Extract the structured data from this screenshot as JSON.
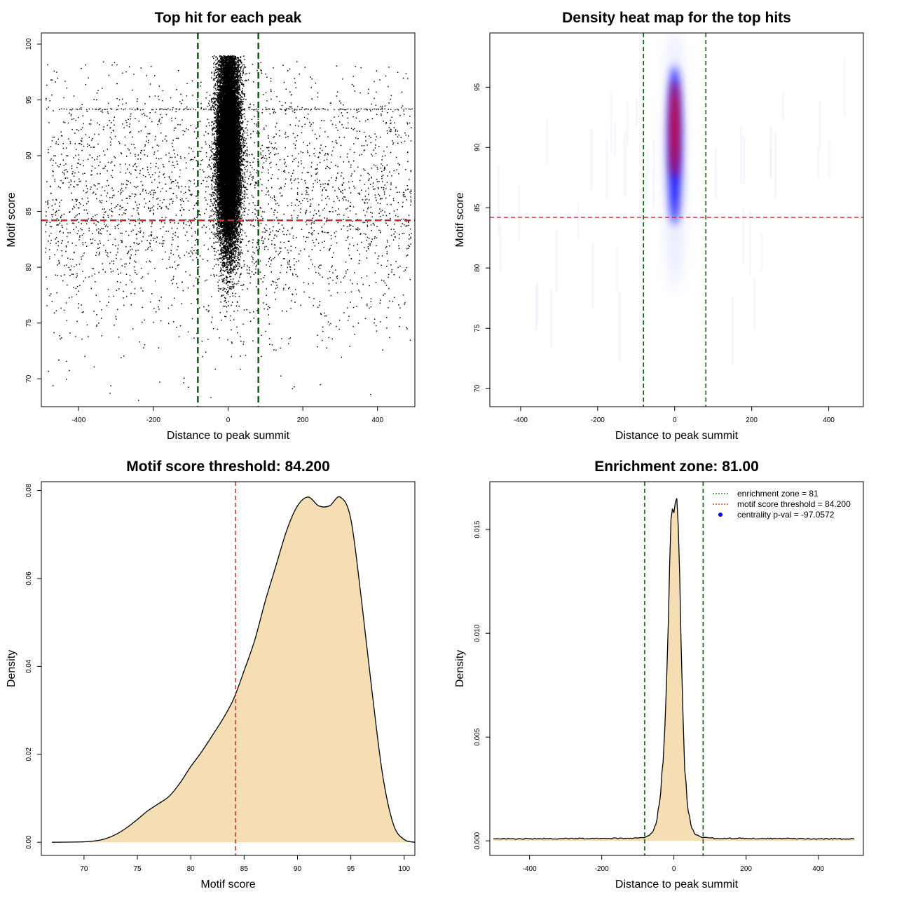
{
  "colors": {
    "zone_line": "#006400",
    "threshold_line": "#dd2222",
    "density_fill": "#f5deb3",
    "points": "#000000",
    "heat_low": "#0000ff",
    "heat_high": "#ff0000",
    "legend_dot": "#0000ff"
  },
  "chart_data": [
    {
      "type": "scatter",
      "title": "Top hit for each peak",
      "xlabel": "Distance to peak summit",
      "ylabel": "Motif score",
      "xlim": [
        -500,
        500
      ],
      "ylim": [
        67.5,
        101
      ],
      "xticks": [
        -400,
        -200,
        0,
        200,
        400
      ],
      "yticks": [
        70,
        75,
        80,
        85,
        90,
        95,
        100
      ],
      "zone_lines_x": [
        -81,
        81
      ],
      "threshold_line_y": 84.2,
      "background": {
        "n": 3000,
        "x_range": [
          -490,
          490
        ],
        "y_mode": 86,
        "y_sd": 6
      },
      "center": {
        "n": 22000,
        "x_sd": 15,
        "y_mode": 90.5,
        "y_sd": 4.2,
        "y_range": [
          72,
          99
        ]
      },
      "stripes": [
        {
          "y": 94.2,
          "x_range": [
            -455,
            490
          ]
        },
        {
          "y": 97.4,
          "x_range": [
            -5,
            55
          ]
        },
        {
          "y": 96.8,
          "x_range": [
            -10,
            50
          ]
        }
      ]
    },
    {
      "type": "heatmap",
      "title": "Density heat map for the top hits",
      "xlabel": "Distance to peak summit",
      "ylabel": "Motif score",
      "xlim": [
        -480,
        490
      ],
      "ylim": [
        68.5,
        99.5
      ],
      "xticks": [
        -400,
        -200,
        0,
        200,
        400
      ],
      "yticks": [
        70,
        75,
        80,
        85,
        90,
        95
      ],
      "zone_lines_x": [
        -81,
        81
      ],
      "threshold_line_y": 84.2,
      "hotspot": {
        "x": 0,
        "y": 91.5,
        "x_sd": 10,
        "y_sd": 3
      },
      "halo": {
        "x": 0,
        "y": 89,
        "x_sd": 18,
        "y_sd": 6
      }
    },
    {
      "type": "area",
      "title": "Motif score threshold: 84.200",
      "xlabel": "Motif score",
      "ylabel": "Density",
      "xlim": [
        66,
        101
      ],
      "ylim": [
        -0.003,
        0.082
      ],
      "xticks": [
        70,
        75,
        80,
        85,
        90,
        95,
        100
      ],
      "yticks": [
        0.0,
        0.02,
        0.04,
        0.06,
        0.08
      ],
      "ytick_labels": [
        "0.00",
        "0.02",
        "0.04",
        "0.06",
        "0.08"
      ],
      "threshold_line_x": 84.2,
      "x": [
        67,
        70,
        71,
        72,
        73,
        74,
        75,
        76,
        77,
        78,
        79,
        80,
        81,
        82,
        83,
        84,
        85,
        86,
        87,
        88,
        89,
        90,
        91,
        92,
        93,
        94,
        95,
        96,
        97,
        98,
        99,
        100,
        101
      ],
      "y": [
        0.0,
        0.0001,
        0.0003,
        0.0008,
        0.0018,
        0.0033,
        0.0052,
        0.0072,
        0.0088,
        0.0105,
        0.0135,
        0.0172,
        0.0205,
        0.0242,
        0.028,
        0.0325,
        0.039,
        0.046,
        0.055,
        0.063,
        0.071,
        0.0765,
        0.0785,
        0.0765,
        0.0765,
        0.0785,
        0.0735,
        0.055,
        0.034,
        0.015,
        0.004,
        0.0006,
        0.0
      ]
    },
    {
      "type": "area",
      "title": "Enrichment zone: 81.00",
      "xlabel": "Distance to peak summit",
      "ylabel": "Density",
      "xlim": [
        -510,
        525
      ],
      "ylim": [
        -0.0007,
        0.0173
      ],
      "xticks": [
        -400,
        -200,
        0,
        200,
        400
      ],
      "yticks": [
        0.0,
        0.005,
        0.01,
        0.015
      ],
      "ytick_labels": [
        "0.000",
        "0.005",
        "0.010",
        "0.015"
      ],
      "zone_lines_x": [
        -81,
        81
      ],
      "baseline": 0.0001,
      "x": [
        -500,
        -120,
        -81,
        -70,
        -60,
        -50,
        -40,
        -30,
        -25,
        -20,
        -15,
        -12,
        -8,
        -4,
        0,
        4,
        8,
        12,
        16,
        20,
        25,
        30,
        40,
        50,
        60,
        81,
        120,
        500
      ],
      "y": [
        0.0001,
        0.00012,
        0.00018,
        0.00025,
        0.0004,
        0.0008,
        0.0018,
        0.0038,
        0.0055,
        0.0078,
        0.0108,
        0.0132,
        0.0155,
        0.016,
        0.0158,
        0.0163,
        0.0165,
        0.0152,
        0.0128,
        0.0095,
        0.0062,
        0.0034,
        0.0014,
        0.0006,
        0.0003,
        0.00016,
        0.00012,
        0.0001
      ],
      "legend": [
        {
          "label": "enrichment zone = 81",
          "style": "green-dotted"
        },
        {
          "label": "motif score threshold = 84.200",
          "style": "red-dotted"
        },
        {
          "label": "centrality p-val = -97.0572",
          "style": "blue-dot"
        }
      ]
    }
  ]
}
